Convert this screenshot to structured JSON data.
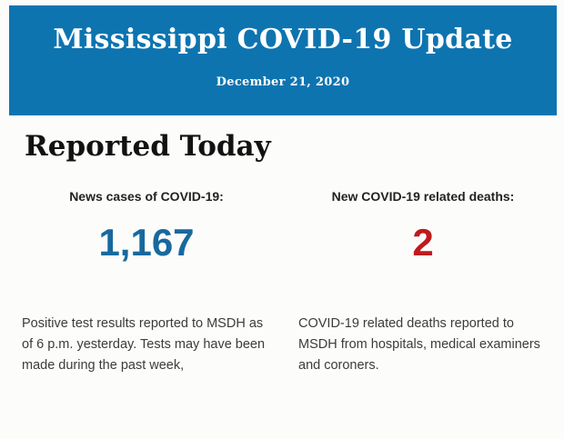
{
  "page": {
    "background": "#fcfcfa"
  },
  "header": {
    "title": "Mississippi COVID-19 Update",
    "date": "December 21, 2020",
    "background": "#0d74b0",
    "text_color": "#ffffff"
  },
  "main": {
    "heading": "Reported Today",
    "stats": [
      {
        "label": "News cases of COVID-19:",
        "value": "1,167",
        "value_color": "#17699e",
        "description": "Positive test results reported to MSDH as of 6 p.m. yesterday. Tests may have been made during the past week,"
      },
      {
        "label": "New COVID-19 related deaths:",
        "value": "2",
        "value_color": "#bf1a1d",
        "description": "COVID-19 related deaths reported to MSDH from hospitals, medical examiners and coroners."
      }
    ]
  }
}
